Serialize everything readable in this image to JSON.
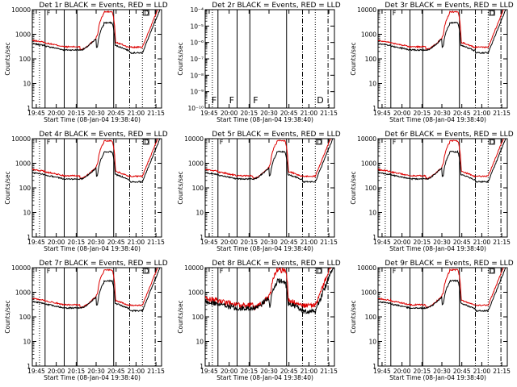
{
  "chart_data": [
    {
      "type": "line",
      "title": "Det 1r  BLACK = Events, RED = LLD",
      "xlabel": "Start Time (08-Jan-04 19:38:40)",
      "ylabel": "Counts/sec",
      "yscale": "log",
      "ylim": [
        1,
        10000
      ],
      "xlim": [
        19.7,
        21.32
      ],
      "x_ticks": [
        "19:45",
        "20:00",
        "20:15",
        "20:30",
        "20:45",
        "21:00",
        "21:15"
      ],
      "y_ticks": [
        "1",
        "10",
        "100",
        "1000",
        "10000"
      ],
      "flag_labels": [
        "F",
        "D"
      ],
      "profile": "normal",
      "series": [
        {
          "name": "Events",
          "color": "#000000"
        },
        {
          "name": "LLD",
          "color": "#dd0000"
        }
      ]
    },
    {
      "type": "line",
      "title": "Det 2r  BLACK = Events, RED = LLD",
      "xlabel": "Start Time (08-Jan-04 19:38:40)",
      "ylabel": "Counts/sec",
      "yscale": "log",
      "ylim": [
        1e-10,
        0.0001
      ],
      "xlim": [
        19.7,
        21.32
      ],
      "x_ticks": [
        "19:45",
        "20:00",
        "20:15",
        "20:30",
        "20:45",
        "21:00",
        "21:15"
      ],
      "y_ticks": [
        "10⁻¹⁰",
        "10⁻⁹",
        "10⁻⁸",
        "10⁻⁷",
        "10⁻⁶",
        "10⁻⁵",
        "10⁻⁴"
      ],
      "flag_labels": [
        "F",
        "F",
        "F",
        "D"
      ],
      "profile": "empty",
      "series": [
        {
          "name": "Events",
          "color": "#000000"
        },
        {
          "name": "LLD",
          "color": "#dd0000"
        }
      ]
    },
    {
      "type": "line",
      "title": "Det 3r  BLACK = Events, RED = LLD",
      "xlabel": "Start Time (08-Jan-04 19:38:40)",
      "ylabel": "Counts/sec",
      "yscale": "log",
      "ylim": [
        1,
        10000
      ],
      "xlim": [
        19.7,
        21.32
      ],
      "x_ticks": [
        "19:45",
        "20:00",
        "20:15",
        "20:30",
        "20:45",
        "21:00",
        "21:15"
      ],
      "y_ticks": [
        "1",
        "10",
        "100",
        "1000",
        "10000"
      ],
      "flag_labels": [
        "F",
        "D"
      ],
      "profile": "normal",
      "series": [
        {
          "name": "Events",
          "color": "#000000"
        },
        {
          "name": "LLD",
          "color": "#dd0000"
        }
      ]
    },
    {
      "type": "line",
      "title": "Det 4r  BLACK = Events, RED = LLD",
      "xlabel": "Start Time (08-Jan-04 19:38:40)",
      "ylabel": "Counts/sec",
      "yscale": "log",
      "ylim": [
        1,
        10000
      ],
      "xlim": [
        19.7,
        21.32
      ],
      "x_ticks": [
        "19:45",
        "20:00",
        "20:15",
        "20:30",
        "20:45",
        "21:00",
        "21:15"
      ],
      "y_ticks": [
        "1",
        "10",
        "100",
        "1000",
        "10000"
      ],
      "flag_labels": [
        "F",
        "D"
      ],
      "profile": "normal",
      "series": [
        {
          "name": "Events",
          "color": "#000000"
        },
        {
          "name": "LLD",
          "color": "#dd0000"
        }
      ]
    },
    {
      "type": "line",
      "title": "Det 5r  BLACK = Events, RED = LLD",
      "xlabel": "Start Time (08-Jan-04 19:38:40)",
      "ylabel": "Counts/sec",
      "yscale": "log",
      "ylim": [
        1,
        10000
      ],
      "xlim": [
        19.7,
        21.32
      ],
      "x_ticks": [
        "19:45",
        "20:00",
        "20:15",
        "20:30",
        "20:45",
        "21:00",
        "21:15"
      ],
      "y_ticks": [
        "1",
        "10",
        "100",
        "1000",
        "10000"
      ],
      "flag_labels": [
        "F",
        "D"
      ],
      "profile": "normal",
      "series": [
        {
          "name": "Events",
          "color": "#000000"
        },
        {
          "name": "LLD",
          "color": "#dd0000"
        }
      ]
    },
    {
      "type": "line",
      "title": "Det 6r  BLACK = Events, RED = LLD",
      "xlabel": "Start Time (08-Jan-04 19:38:40)",
      "ylabel": "Counts/sec",
      "yscale": "log",
      "ylim": [
        1,
        10000
      ],
      "xlim": [
        19.7,
        21.32
      ],
      "x_ticks": [
        "19:45",
        "20:00",
        "20:15",
        "20:30",
        "20:45",
        "21:00",
        "21:15"
      ],
      "y_ticks": [
        "1",
        "10",
        "100",
        "1000",
        "10000"
      ],
      "flag_labels": [
        "F",
        "D"
      ],
      "profile": "normal",
      "series": [
        {
          "name": "Events",
          "color": "#000000"
        },
        {
          "name": "LLD",
          "color": "#dd0000"
        }
      ]
    },
    {
      "type": "line",
      "title": "Det 7r  BLACK = Events, RED = LLD",
      "xlabel": "Start Time (08-Jan-04 19:38:40)",
      "ylabel": "Counts/sec",
      "yscale": "log",
      "ylim": [
        1,
        10000
      ],
      "xlim": [
        19.7,
        21.32
      ],
      "x_ticks": [
        "19:45",
        "20:00",
        "20:15",
        "20:30",
        "20:45",
        "21:00",
        "21:15"
      ],
      "y_ticks": [
        "1",
        "10",
        "100",
        "1000",
        "10000"
      ],
      "flag_labels": [
        "F",
        "D"
      ],
      "profile": "normal",
      "series": [
        {
          "name": "Events",
          "color": "#000000"
        },
        {
          "name": "LLD",
          "color": "#dd0000"
        }
      ]
    },
    {
      "type": "line",
      "title": "Det 8r  BLACK = Events, RED = LLD",
      "xlabel": "Start Time (08-Jan-04 19:38:40)",
      "ylabel": "Counts/sec",
      "yscale": "log",
      "ylim": [
        1,
        10000
      ],
      "xlim": [
        19.7,
        21.32
      ],
      "x_ticks": [
        "19:45",
        "20:00",
        "20:15",
        "20:30",
        "20:45",
        "21:00",
        "21:15"
      ],
      "y_ticks": [
        "1",
        "10",
        "100",
        "1000",
        "10000"
      ],
      "flag_labels": [
        "F",
        "D"
      ],
      "profile": "noisy",
      "series": [
        {
          "name": "Events",
          "color": "#000000"
        },
        {
          "name": "LLD",
          "color": "#dd0000"
        }
      ]
    },
    {
      "type": "line",
      "title": "Det 9r  BLACK = Events, RED = LLD",
      "xlabel": "Start Time (08-Jan-04 19:38:40)",
      "ylabel": "Counts/sec",
      "yscale": "log",
      "ylim": [
        1,
        10000
      ],
      "xlim": [
        19.7,
        21.32
      ],
      "x_ticks": [
        "19:45",
        "20:00",
        "20:15",
        "20:30",
        "20:45",
        "21:00",
        "21:15"
      ],
      "y_ticks": [
        "1",
        "10",
        "100",
        "1000",
        "10000"
      ],
      "flag_labels": [
        "F",
        "D"
      ],
      "profile": "normal",
      "series": [
        {
          "name": "Events",
          "color": "#000000"
        },
        {
          "name": "LLD",
          "color": "#dd0000"
        }
      ]
    }
  ]
}
